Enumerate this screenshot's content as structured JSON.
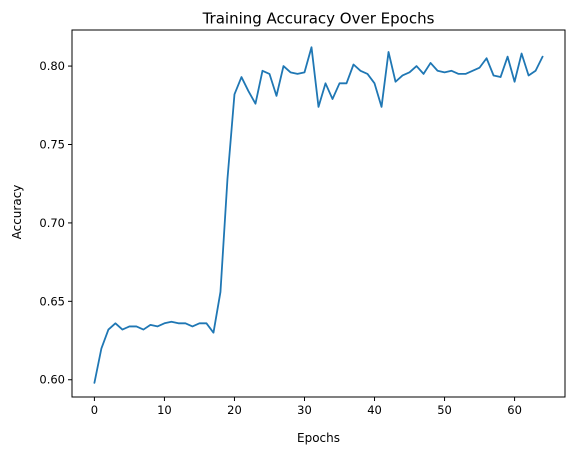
{
  "chart_data": {
    "type": "line",
    "title": "Training Accuracy Over Epochs",
    "xlabel": "Epochs",
    "ylabel": "Accuracy",
    "xlim": [
      -3.2,
      67.2
    ],
    "ylim": [
      0.589,
      0.823
    ],
    "grid": false,
    "x_ticks": [
      0,
      10,
      20,
      30,
      40,
      50,
      60
    ],
    "x_tick_labels": [
      "0",
      "10",
      "20",
      "30",
      "40",
      "50",
      "60"
    ],
    "y_ticks": [
      0.6,
      0.65,
      0.7,
      0.75,
      0.8
    ],
    "y_tick_labels": [
      "0.60",
      "0.65",
      "0.70",
      "0.75",
      "0.80"
    ],
    "line_color": "#1f77b4",
    "series": [
      {
        "x": [
          0,
          1,
          2,
          3,
          4,
          5,
          6,
          7,
          8,
          9,
          10,
          11,
          12,
          13,
          14,
          15,
          16,
          17,
          18,
          19,
          20,
          21,
          22,
          23,
          24,
          25,
          26,
          27,
          28,
          29,
          30,
          31,
          32,
          33,
          34,
          35,
          36,
          37,
          38,
          39,
          40,
          41,
          42,
          43,
          44,
          45,
          46,
          47,
          48,
          49,
          50,
          51,
          52,
          53,
          54,
          55,
          56,
          57,
          58,
          59,
          60,
          61,
          62,
          63,
          64
        ],
        "values": [
          0.598,
          0.62,
          0.632,
          0.636,
          0.632,
          0.634,
          0.634,
          0.632,
          0.635,
          0.634,
          0.636,
          0.637,
          0.636,
          0.636,
          0.634,
          0.636,
          0.636,
          0.63,
          0.656,
          0.728,
          0.782,
          0.793,
          0.784,
          0.776,
          0.797,
          0.795,
          0.781,
          0.8,
          0.796,
          0.795,
          0.796,
          0.812,
          0.774,
          0.789,
          0.779,
          0.789,
          0.789,
          0.801,
          0.797,
          0.795,
          0.789,
          0.774,
          0.809,
          0.79,
          0.794,
          0.796,
          0.8,
          0.795,
          0.802,
          0.797,
          0.796,
          0.797,
          0.795,
          0.795,
          0.797,
          0.799,
          0.805,
          0.794,
          0.793,
          0.806,
          0.79,
          0.808,
          0.794,
          0.797,
          0.806
        ]
      }
    ]
  }
}
